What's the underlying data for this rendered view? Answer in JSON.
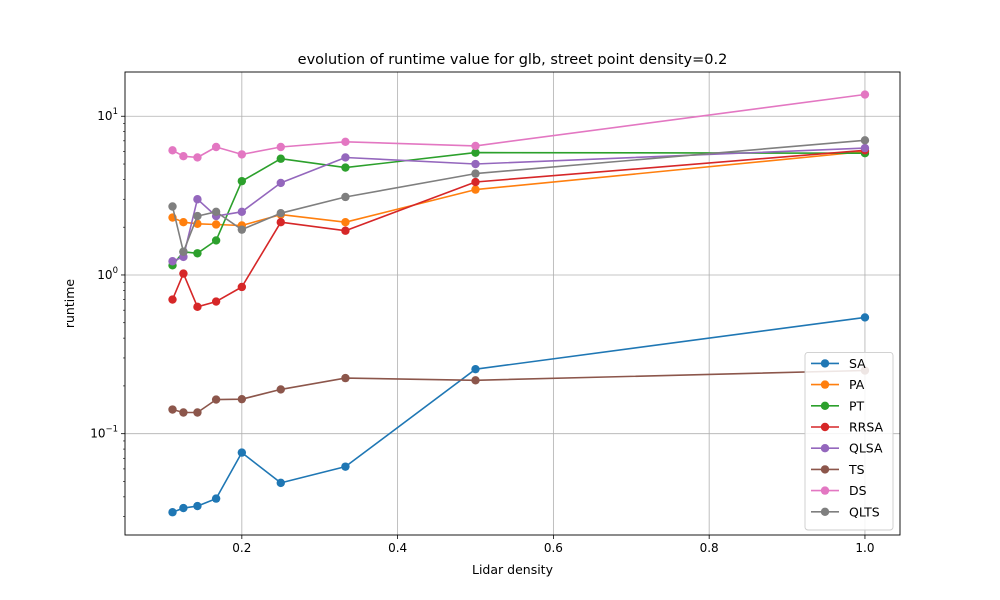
{
  "chart_data": {
    "type": "line",
    "title": "evolution of runtime value  for glb, street point density=0.2",
    "xlabel": "Lidar density",
    "ylabel": "runtime",
    "xlim": [
      0.05,
      1.045
    ],
    "ylim": [
      0.023,
      19
    ],
    "yscale": "log",
    "grid": true,
    "legend_position": "lower-right",
    "x": [
      0.111,
      0.125,
      0.143,
      0.167,
      0.2,
      0.25,
      0.333,
      0.5,
      1.0
    ],
    "x_ticks": [
      {
        "value": 0.2,
        "label": "0.2"
      },
      {
        "value": 0.4,
        "label": "0.4"
      },
      {
        "value": 0.6,
        "label": "0.6"
      },
      {
        "value": 0.8,
        "label": "0.8"
      },
      {
        "value": 1.0,
        "label": "1.0"
      }
    ],
    "y_ticks": [
      {
        "value": 0.1,
        "base": "10",
        "exp": "−1"
      },
      {
        "value": 1,
        "base": "10",
        "exp": "0"
      },
      {
        "value": 10,
        "base": "10",
        "exp": "1"
      }
    ],
    "series": [
      {
        "name": "SA",
        "color": "#1f77b4",
        "values": [
          0.032,
          0.034,
          0.035,
          0.039,
          0.076,
          0.049,
          0.062,
          0.255,
          0.54
        ]
      },
      {
        "name": "PA",
        "color": "#ff7f0e",
        "values": [
          2.3,
          2.15,
          2.1,
          2.08,
          2.05,
          2.4,
          2.15,
          3.45,
          6.0
        ]
      },
      {
        "name": "PT",
        "color": "#2ca02c",
        "values": [
          1.15,
          1.4,
          1.37,
          1.65,
          3.9,
          5.4,
          4.75,
          5.9,
          5.85
        ]
      },
      {
        "name": "RRSA",
        "color": "#d62728",
        "values": [
          0.7,
          1.02,
          0.63,
          0.68,
          0.84,
          2.15,
          1.9,
          3.85,
          6.1
        ]
      },
      {
        "name": "QLSA",
        "color": "#9467bd",
        "values": [
          1.22,
          1.3,
          3.0,
          2.35,
          2.5,
          3.8,
          5.5,
          5.0,
          6.3
        ]
      },
      {
        "name": "TS",
        "color": "#8c564b",
        "values": [
          0.142,
          0.136,
          0.136,
          0.164,
          0.165,
          0.19,
          0.224,
          0.217,
          0.25
        ]
      },
      {
        "name": "DS",
        "color": "#e377c2",
        "values": [
          6.1,
          5.6,
          5.5,
          6.4,
          5.75,
          6.4,
          6.9,
          6.5,
          13.7
        ]
      },
      {
        "name": "QLTS",
        "color": "#7f7f7f",
        "values": [
          2.7,
          1.4,
          2.35,
          2.5,
          1.93,
          2.45,
          3.1,
          4.35,
          7.05
        ]
      }
    ]
  }
}
